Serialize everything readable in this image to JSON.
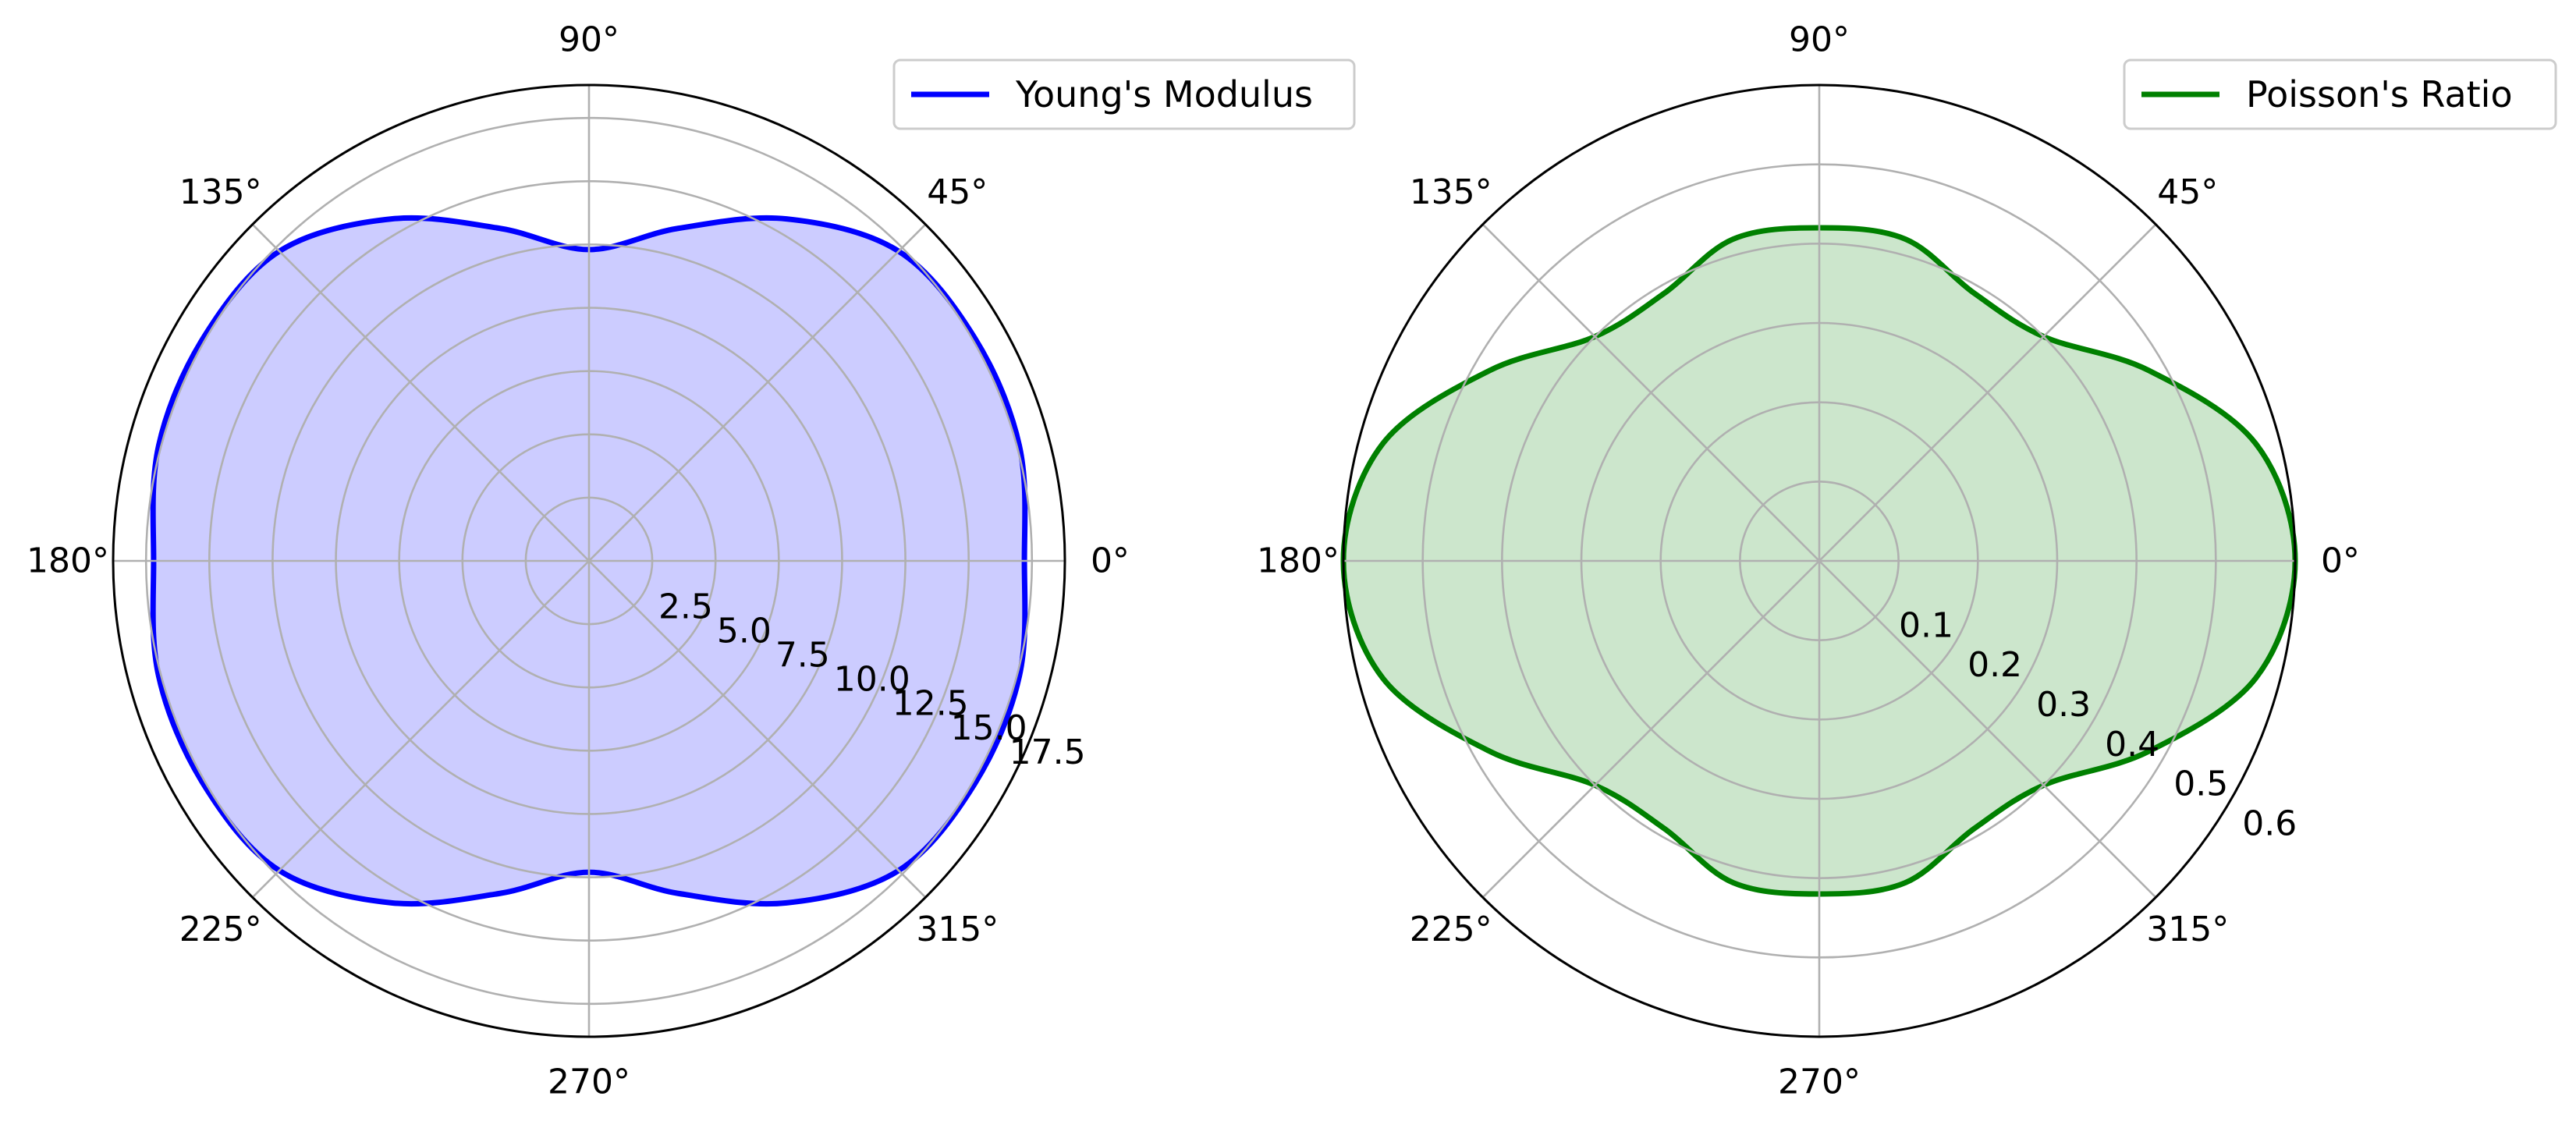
{
  "chart_data": [
    {
      "type": "polar-area",
      "theta_unit": "degrees",
      "angle_ticks": [
        0,
        45,
        90,
        135,
        180,
        225,
        270,
        315
      ],
      "angle_tick_labels": [
        "0°",
        "45°",
        "90°",
        "135°",
        "180°",
        "225°",
        "270°",
        "315°"
      ],
      "radial_ticks": [
        2.5,
        5.0,
        7.5,
        10.0,
        12.5,
        15.0,
        17.5
      ],
      "radial_tick_labels": [
        "2.5",
        "5.0",
        "7.5",
        "10.0",
        "12.5",
        "15.0",
        "17.5"
      ],
      "rlim": [
        0,
        18.8
      ],
      "grid": true,
      "legend_position": "top-right",
      "series": [
        {
          "name": "Young's Modulus",
          "color": "#0000ff",
          "fill_color": "#ccccff",
          "theta": [
            0,
            15,
            30,
            45,
            60,
            75,
            90,
            105,
            120,
            135,
            150,
            165,
            180,
            195,
            210,
            225,
            240,
            255,
            270,
            285,
            300,
            315,
            330,
            345
          ],
          "r": [
            17.2,
            17.6,
            17.6,
            17.3,
            15.6,
            13.6,
            12.3,
            13.6,
            15.6,
            17.3,
            17.6,
            17.6,
            17.2,
            17.6,
            17.6,
            17.3,
            15.6,
            13.6,
            12.3,
            13.6,
            15.6,
            17.3,
            17.6,
            17.6
          ]
        }
      ]
    },
    {
      "type": "polar-area",
      "theta_unit": "degrees",
      "angle_ticks": [
        0,
        45,
        90,
        135,
        180,
        225,
        270,
        315
      ],
      "angle_tick_labels": [
        "0°",
        "45°",
        "90°",
        "135°",
        "180°",
        "225°",
        "270°",
        "315°"
      ],
      "radial_ticks": [
        0.1,
        0.2,
        0.3,
        0.4,
        0.5,
        0.6
      ],
      "radial_tick_labels": [
        "0.1",
        "0.2",
        "0.3",
        "0.4",
        "0.5",
        "0.6"
      ],
      "rlim": [
        0,
        0.6
      ],
      "grid": true,
      "legend_position": "top-right",
      "series": [
        {
          "name": "Poisson's Ratio",
          "color": "#008000",
          "fill_color": "#cce6cc",
          "theta": [
            0,
            15,
            30,
            45,
            60,
            75,
            90,
            105,
            120,
            135,
            150,
            165,
            180,
            195,
            210,
            225,
            240,
            255,
            270,
            285,
            300,
            315,
            330,
            345
          ],
          "r": [
            0.6,
            0.57,
            0.48,
            0.4,
            0.39,
            0.42,
            0.42,
            0.42,
            0.39,
            0.4,
            0.48,
            0.57,
            0.6,
            0.57,
            0.48,
            0.4,
            0.39,
            0.42,
            0.42,
            0.42,
            0.39,
            0.4,
            0.48,
            0.57
          ]
        }
      ]
    }
  ]
}
